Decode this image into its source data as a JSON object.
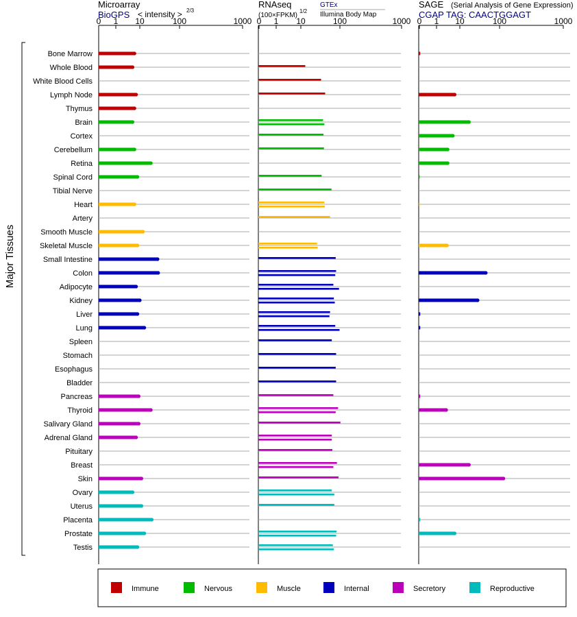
{
  "colors": {
    "Immune": "#c00000",
    "Nervous": "#00bb00",
    "Muscle": "#ffbb00",
    "Internal": "#0000bb",
    "Secretory": "#bb00bb",
    "Reproductive": "#00bbbb",
    "link": "#000080",
    "gridline": "#aaaaaa"
  },
  "headers": {
    "microarray": {
      "title": "Microarray",
      "source": "BioGPS",
      "scale_prefix": "< intensity >",
      "scale_exp": "2/3"
    },
    "rnaseq": {
      "title": "RNAseq",
      "unit": "(100×FPKM)",
      "unit_exp": "1/2",
      "source1": "GTEx",
      "source2": "Illumina Body Map"
    },
    "sage": {
      "title": "SAGE",
      "subtitle": "(Serial Analysis of Gene Expression)",
      "tag_line": "CGAP TAG: CAACTGGAGT"
    }
  },
  "axis_label": "Major Tissues",
  "tick_labels": [
    "0",
    "1",
    "10",
    "100",
    "1000"
  ],
  "legend": [
    {
      "name": "Immune"
    },
    {
      "name": "Nervous"
    },
    {
      "name": "Muscle"
    },
    {
      "name": "Internal"
    },
    {
      "name": "Secretory"
    },
    {
      "name": "Reproductive"
    }
  ],
  "chart_data": {
    "type": "bar",
    "orientation": "horizontal",
    "scale": "log",
    "xlim": [
      0,
      1000
    ],
    "ticks": [
      0,
      1,
      10,
      100,
      1000
    ],
    "panels": [
      "Microarray",
      "RNAseq",
      "SAGE"
    ],
    "tissues": [
      {
        "name": "Bone Marrow",
        "system": "Immune",
        "micro": 6,
        "rnaseq": [],
        "sage": 0.05
      },
      {
        "name": "Whole Blood",
        "system": "Immune",
        "micro": 5,
        "rnaseq": [
          13
        ],
        "sage": null
      },
      {
        "name": "White Blood Cells",
        "system": "Immune",
        "micro": null,
        "rnaseq": [
          33
        ],
        "sage": null
      },
      {
        "name": "Lymph Node",
        "system": "Immune",
        "micro": 7,
        "rnaseq": [
          42
        ],
        "sage": 6
      },
      {
        "name": "Thymus",
        "system": "Immune",
        "micro": 6,
        "rnaseq": [],
        "sage": null
      },
      {
        "name": "Brain",
        "system": "Nervous",
        "micro": 5,
        "rnaseq": [
          37,
          40
        ],
        "sage": 17
      },
      {
        "name": "Cortex",
        "system": "Nervous",
        "micro": null,
        "rnaseq": [
          38
        ],
        "sage": 5
      },
      {
        "name": "Cerebellum",
        "system": "Nervous",
        "micro": 6,
        "rnaseq": [
          39
        ],
        "sage": 3
      },
      {
        "name": "Retina",
        "system": "Nervous",
        "micro": 19,
        "rnaseq": [],
        "sage": 3
      },
      {
        "name": "Spinal Cord",
        "system": "Nervous",
        "micro": 8,
        "rnaseq": [
          34
        ],
        "sage": 0.02
      },
      {
        "name": "Tibial Nerve",
        "system": "Nervous",
        "micro": null,
        "rnaseq": [
          61
        ],
        "sage": null
      },
      {
        "name": "Heart",
        "system": "Muscle",
        "micro": 6,
        "rnaseq": [
          40,
          41
        ],
        "sage": 0.02
      },
      {
        "name": "Artery",
        "system": "Muscle",
        "micro": null,
        "rnaseq": [
          56
        ],
        "sage": null
      },
      {
        "name": "Smooth Muscle",
        "system": "Muscle",
        "micro": 12,
        "rnaseq": [],
        "sage": null
      },
      {
        "name": "Skeletal Muscle",
        "system": "Muscle",
        "micro": 8,
        "rnaseq": [
          26,
          27
        ],
        "sage": 2.8
      },
      {
        "name": "Small Intestine",
        "system": "Internal",
        "micro": 28,
        "rnaseq": [
          78
        ],
        "sage": null
      },
      {
        "name": "Colon",
        "system": "Internal",
        "micro": 29,
        "rnaseq": [
          80,
          76
        ],
        "sage": 45
      },
      {
        "name": "Adipocyte",
        "system": "Internal",
        "micro": 7,
        "rnaseq": [
          68,
          95
        ],
        "sage": null
      },
      {
        "name": "Kidney",
        "system": "Internal",
        "micro": 10,
        "rnaseq": [
          70,
          74
        ],
        "sage": 28
      },
      {
        "name": "Liver",
        "system": "Internal",
        "micro": 8,
        "rnaseq": [
          56,
          54
        ],
        "sage": 0.05
      },
      {
        "name": "Lung",
        "system": "Internal",
        "micro": 13,
        "rnaseq": [
          76,
          98
        ],
        "sage": 0.05
      },
      {
        "name": "Spleen",
        "system": "Internal",
        "micro": null,
        "rnaseq": [
          62
        ],
        "sage": null
      },
      {
        "name": "Stomach",
        "system": "Internal",
        "micro": null,
        "rnaseq": [
          80
        ],
        "sage": null
      },
      {
        "name": "Esophagus",
        "system": "Internal",
        "micro": null,
        "rnaseq": [
          78
        ],
        "sage": null
      },
      {
        "name": "Bladder",
        "system": "Internal",
        "micro": null,
        "rnaseq": [
          80
        ],
        "sage": null
      },
      {
        "name": "Pancreas",
        "system": "Secretory",
        "micro": 9,
        "rnaseq": [
          68
        ],
        "sage": 0.05
      },
      {
        "name": "Thyroid",
        "system": "Secretory",
        "micro": 19,
        "rnaseq": [
          90,
          78
        ],
        "sage": 2.6
      },
      {
        "name": "Salivary Gland",
        "system": "Secretory",
        "micro": 9,
        "rnaseq": [
          102
        ],
        "sage": null
      },
      {
        "name": "Adrenal Gland",
        "system": "Secretory",
        "micro": 7,
        "rnaseq": [
          62,
          62
        ],
        "sage": null
      },
      {
        "name": "Pituitary",
        "system": "Secretory",
        "micro": null,
        "rnaseq": [
          64
        ],
        "sage": null
      },
      {
        "name": "Breast",
        "system": "Secretory",
        "micro": null,
        "rnaseq": [
          84,
          68
        ],
        "sage": 17
      },
      {
        "name": "Skin",
        "system": "Secretory",
        "micro": 11,
        "rnaseq": [
          92
        ],
        "sage": 115
      },
      {
        "name": "Ovary",
        "system": "Reproductive",
        "micro": 5,
        "rnaseq": [
          62,
          72
        ],
        "sage": null
      },
      {
        "name": "Uterus",
        "system": "Reproductive",
        "micro": 11,
        "rnaseq": [
          72
        ],
        "sage": null
      },
      {
        "name": "Placenta",
        "system": "Reproductive",
        "micro": 20,
        "rnaseq": [],
        "sage": 0.05
      },
      {
        "name": "Prostate",
        "system": "Reproductive",
        "micro": 13,
        "rnaseq": [
          82,
          80
        ],
        "sage": 6
      },
      {
        "name": "Testis",
        "system": "Reproductive",
        "micro": 8,
        "rnaseq": [
          66,
          70
        ],
        "sage": null
      }
    ]
  }
}
